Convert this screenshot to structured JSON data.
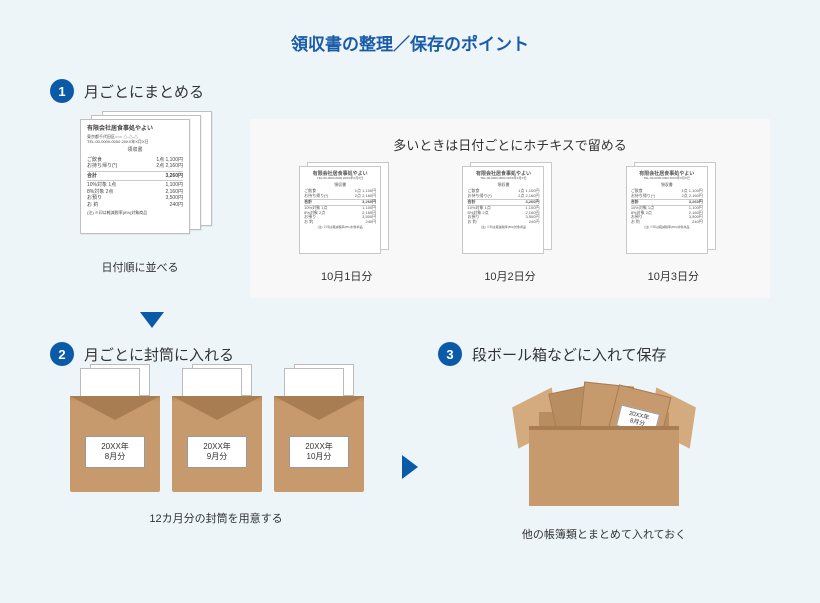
{
  "title": "領収書の整理／保存のポイント",
  "colors": {
    "background": "#edf5f9",
    "accent": "#0b5aa8",
    "inset_bg": "#f8f8f8",
    "envelope": "#c69a6d",
    "envelope_dark": "#a87d51"
  },
  "step1": {
    "num": "1",
    "title": "月ごとにまとめる",
    "caption": "日付順に並べる",
    "receipt": {
      "company": "有限会社居食事処やよい",
      "addr": "東京都千代田区○○○ △-△-△",
      "tel": "TEL:00-0000-0000  20XX年X月X日",
      "header": "領収書",
      "lines": [
        [
          "ご飲食",
          "1点 1,100円"
        ],
        [
          "お持ち帰り(*)",
          "2点 2,160円"
        ],
        [
          "合計",
          "3,260円"
        ],
        [
          "10%対象 1点",
          "1,100円"
        ],
        [
          "8%対象 2点",
          "2,160円"
        ],
        [
          "お預り",
          "3,500円"
        ],
        [
          "お 釣",
          "240円"
        ]
      ],
      "footnote": "(注) ※印は軽減税率(8%)対象商品"
    },
    "inset": {
      "title": "多いときは日付ごとにホチキスで留める",
      "dates": [
        "10月1日分",
        "10月2日分",
        "10月3日分"
      ]
    }
  },
  "step2": {
    "num": "2",
    "title": "月ごとに封筒に入れる",
    "envelopes": [
      "20XX年\n8月分",
      "20XX年\n9月分",
      "20XX年\n10月分"
    ],
    "caption": "12カ月分の封筒を用意する"
  },
  "step3": {
    "num": "3",
    "title": "段ボール箱などに入れて保存",
    "box_label": "20XX年\n8月分",
    "caption": "他の帳簿類とまとめて入れておく"
  }
}
